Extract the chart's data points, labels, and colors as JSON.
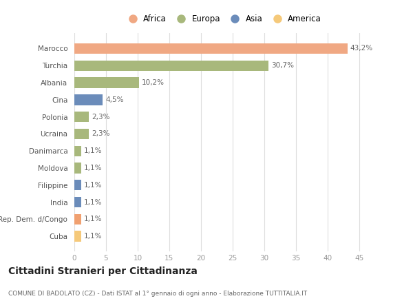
{
  "categories": [
    "Cuba",
    "Rep. Dem. d/Congo",
    "India",
    "Filippine",
    "Moldova",
    "Danimarca",
    "Ucraina",
    "Polonia",
    "Cina",
    "Albania",
    "Turchia",
    "Marocco"
  ],
  "values": [
    1.1,
    1.1,
    1.1,
    1.1,
    1.1,
    1.1,
    2.3,
    2.3,
    4.5,
    10.2,
    30.7,
    43.2
  ],
  "labels": [
    "1,1%",
    "1,1%",
    "1,1%",
    "1,1%",
    "1,1%",
    "1,1%",
    "2,3%",
    "2,3%",
    "4,5%",
    "10,2%",
    "30,7%",
    "43,2%"
  ],
  "colors": [
    "#f5c97a",
    "#f0a070",
    "#6b8cba",
    "#6b8cba",
    "#a8b87c",
    "#a8b87c",
    "#a8b87c",
    "#a8b87c",
    "#6b8cba",
    "#a8b87c",
    "#a8b87c",
    "#f0a883"
  ],
  "legend": [
    {
      "label": "Africa",
      "color": "#f0a883"
    },
    {
      "label": "Europa",
      "color": "#a8b87c"
    },
    {
      "label": "Asia",
      "color": "#6b8cba"
    },
    {
      "label": "America",
      "color": "#f5c97a"
    }
  ],
  "title": "Cittadini Stranieri per Cittadinanza",
  "subtitle": "COMUNE DI BADOLATO (CZ) - Dati ISTAT al 1° gennaio di ogni anno - Elaborazione TUTTITALIA.IT",
  "xlim": [
    0,
    47
  ],
  "xticks": [
    0,
    5,
    10,
    15,
    20,
    25,
    30,
    35,
    40,
    45
  ],
  "background_color": "#ffffff",
  "grid_color": "#dddddd"
}
